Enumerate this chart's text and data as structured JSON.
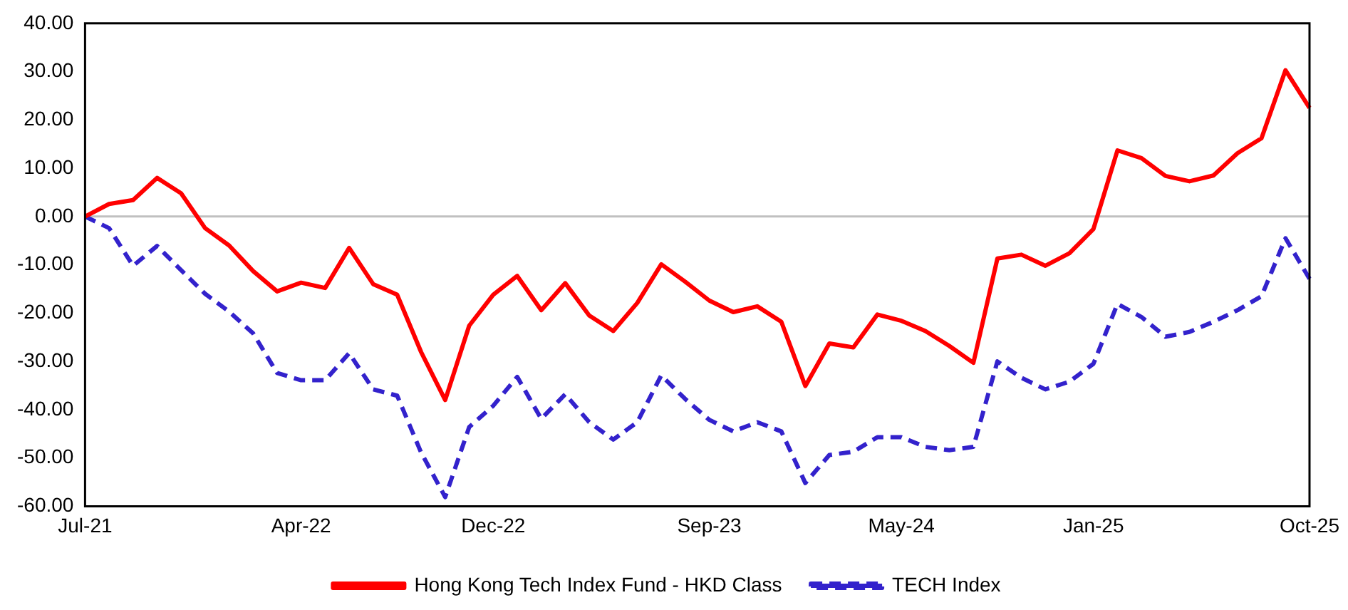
{
  "chart_data": {
    "type": "line",
    "categories": [
      "Jul-21",
      null,
      null,
      null,
      null,
      null,
      null,
      null,
      null,
      "Apr-22",
      null,
      null,
      null,
      null,
      null,
      null,
      null,
      "Dec-22",
      null,
      null,
      null,
      null,
      null,
      null,
      null,
      null,
      "Sep-23",
      null,
      null,
      null,
      null,
      null,
      null,
      null,
      "May-24",
      null,
      null,
      null,
      null,
      null,
      null,
      null,
      "Jan-25",
      null,
      null,
      null,
      null,
      null,
      null,
      null,
      null,
      "Oct-25"
    ],
    "series": [
      {
        "name": "Hong Kong Tech Index Fund - HKD Class",
        "color": "#ff0000",
        "line_style": "solid",
        "values": [
          0,
          2.6,
          3.4,
          8.0,
          4.8,
          -2.4,
          -6.0,
          -11.3,
          -15.5,
          -13.7,
          -14.8,
          -6.5,
          -14.0,
          -16.2,
          -28.1,
          -38.0,
          -22.6,
          -16.2,
          -12.3,
          -19.4,
          -13.8,
          -20.5,
          -23.7,
          -17.9,
          -9.9,
          -13.5,
          -17.4,
          -19.8,
          -18.6,
          -21.8,
          -35.1,
          -26.3,
          -27.1,
          -20.3,
          -21.6,
          -23.7,
          -26.8,
          -30.3,
          -8.7,
          -7.9,
          -10.2,
          -7.6,
          -2.6,
          13.7,
          12.1,
          8.4,
          7.3,
          8.5,
          13.1,
          16.2,
          30.3,
          22.5
        ]
      },
      {
        "name": "TECH Index",
        "color": "#3322cc",
        "line_style": "dashed",
        "values": [
          0,
          -2.4,
          -10.2,
          -6.1,
          -11.1,
          -16.0,
          -19.7,
          -24.2,
          -32.4,
          -33.9,
          -33.9,
          -28.3,
          -35.8,
          -37.1,
          -48.9,
          -58.1,
          -43.6,
          -39.2,
          -33.2,
          -41.9,
          -36.8,
          -42.6,
          -46.2,
          -42.6,
          -32.9,
          -37.8,
          -42.1,
          -44.5,
          -42.6,
          -44.5,
          -55.2,
          -49.4,
          -48.7,
          -45.7,
          -45.7,
          -47.7,
          -48.4,
          -47.7,
          -30.0,
          -33.4,
          -35.8,
          -34.2,
          -30.5,
          -18.1,
          -20.8,
          -24.9,
          -23.9,
          -21.8,
          -19.4,
          -16.5,
          -4.5,
          -12.9
        ]
      }
    ],
    "ylim": [
      -60,
      40
    ],
    "yticks": [
      {
        "value": -60,
        "label": "-60.00"
      },
      {
        "value": -50,
        "label": "-50.00"
      },
      {
        "value": -40,
        "label": "-40.00"
      },
      {
        "value": -30,
        "label": "-30.00"
      },
      {
        "value": -20,
        "label": "-20.00"
      },
      {
        "value": -10,
        "label": "-10.00"
      },
      {
        "value": 0,
        "label": "0.00"
      },
      {
        "value": 10,
        "label": "10.00"
      },
      {
        "value": 20,
        "label": "20.00"
      },
      {
        "value": 30,
        "label": "30.00"
      },
      {
        "value": 40,
        "label": "40.00"
      }
    ],
    "ref_lines": [
      {
        "axis": "y",
        "value": 0,
        "color": "#c0c0c0"
      }
    ],
    "grid": false,
    "legend": "bottom",
    "marker": "none"
  }
}
